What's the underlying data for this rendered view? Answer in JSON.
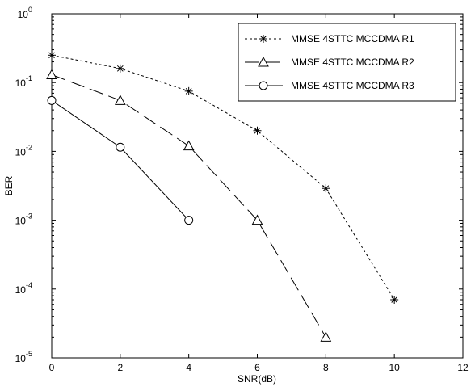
{
  "chart_data": {
    "type": "line",
    "xlabel": "SNR(dB)",
    "ylabel": "BER",
    "xlim": [
      0,
      12
    ],
    "ylim": [
      1e-05,
      1
    ],
    "yscale": "log",
    "grid": false,
    "legend_position": "top-right",
    "x_ticks": [
      "0",
      "2",
      "4",
      "6",
      "8",
      "10",
      "12"
    ],
    "y_ticks": [
      {
        "base": "10",
        "exp": "0"
      },
      {
        "base": "10",
        "exp": "-1"
      },
      {
        "base": "10",
        "exp": "-2"
      },
      {
        "base": "10",
        "exp": "-3"
      },
      {
        "base": "10",
        "exp": "-4"
      },
      {
        "base": "10",
        "exp": "-5"
      }
    ],
    "series": [
      {
        "name": "MMSE 4STTC MCCDMA R1",
        "marker": "asterisk",
        "line_style": "dotted",
        "color": "#000000",
        "x": [
          0,
          2,
          4,
          6,
          8,
          10
        ],
        "y": [
          0.25,
          0.16,
          0.075,
          0.02,
          0.0029,
          7e-05
        ]
      },
      {
        "name": "MMSE 4STTC MCCDMA R2",
        "marker": "triangle",
        "line_style": "dashed",
        "color": "#000000",
        "x": [
          0,
          2,
          4,
          6,
          8
        ],
        "y": [
          0.13,
          0.055,
          0.012,
          0.001,
          2e-05
        ]
      },
      {
        "name": "MMSE 4STTC MCCDMA R3",
        "marker": "circle",
        "line_style": "solid",
        "color": "#000000",
        "x": [
          0,
          2,
          4
        ],
        "y": [
          0.055,
          0.0115,
          0.001
        ]
      }
    ]
  }
}
